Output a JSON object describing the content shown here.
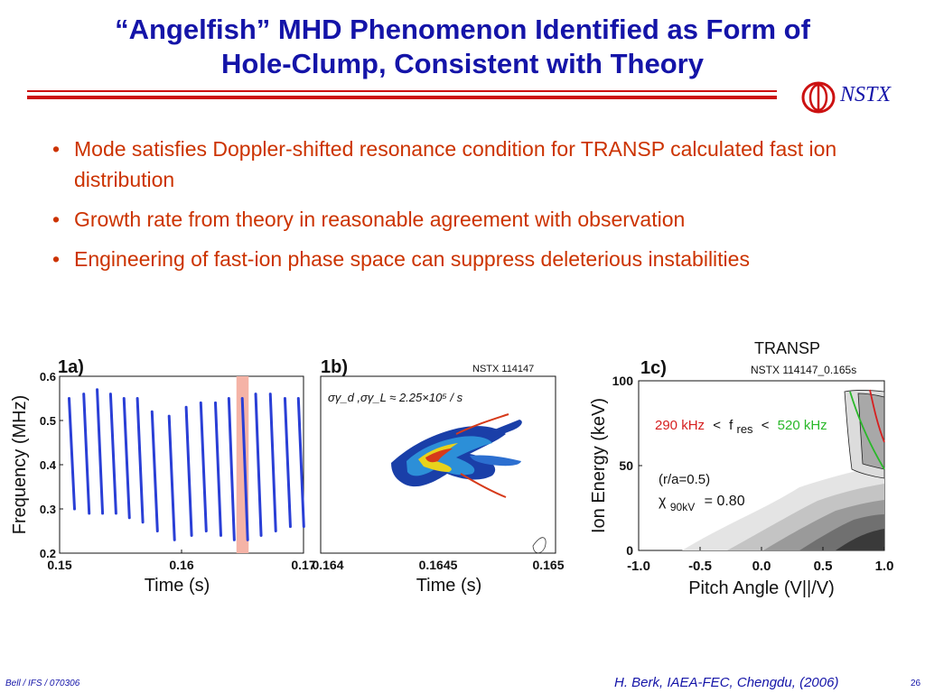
{
  "slide": {
    "title_line1": "“Angelfish” MHD Phenomenon Identified as Form of",
    "title_line2": "Hole-Clump, Consistent with Theory",
    "logo_text": "NSTX",
    "bullets": [
      "Mode satisfies Doppler-shifted resonance condition for TRANSP calculated fast ion distribution",
      "Growth rate from theory in reasonable agreement with observation",
      "Engineering of fast-ion phase space can suppress deleterious instabilities"
    ],
    "footer_left": "Bell / IFS / 070306",
    "footer_center": "H. Berk, IAEA-FEC, Chengdu, (2006)",
    "page_number": "26",
    "colors": {
      "title": "#1414a8",
      "bullets": "#cc3300",
      "rule": "#cc1111"
    }
  },
  "chart_data": [
    {
      "type": "scatter",
      "panel_label": "1a)",
      "xlabel": "Time (s)",
      "ylabel": "Frequency (MHz)",
      "xlim": [
        0.15,
        0.17
      ],
      "ylim": [
        0.2,
        0.6
      ],
      "xticks": [
        "0.15",
        "0.16",
        "0.17"
      ],
      "yticks": [
        "0.2",
        "0.3",
        "0.4",
        "0.5",
        "0.6"
      ],
      "highlight_band_x": [
        0.1645,
        0.1655
      ],
      "bursts": [
        {
          "t": 0.151,
          "f_low": 0.3,
          "f_high": 0.55
        },
        {
          "t": 0.1522,
          "f_low": 0.29,
          "f_high": 0.56
        },
        {
          "t": 0.1533,
          "f_low": 0.29,
          "f_high": 0.57
        },
        {
          "t": 0.1544,
          "f_low": 0.29,
          "f_high": 0.56
        },
        {
          "t": 0.1555,
          "f_low": 0.28,
          "f_high": 0.55
        },
        {
          "t": 0.1566,
          "f_low": 0.27,
          "f_high": 0.55
        },
        {
          "t": 0.1578,
          "f_low": 0.25,
          "f_high": 0.52
        },
        {
          "t": 0.1592,
          "f_low": 0.23,
          "f_high": 0.51
        },
        {
          "t": 0.1606,
          "f_low": 0.24,
          "f_high": 0.53
        },
        {
          "t": 0.1618,
          "f_low": 0.25,
          "f_high": 0.54
        },
        {
          "t": 0.163,
          "f_low": 0.24,
          "f_high": 0.54
        },
        {
          "t": 0.1641,
          "f_low": 0.23,
          "f_high": 0.55
        },
        {
          "t": 0.1652,
          "f_low": 0.23,
          "f_high": 0.55
        },
        {
          "t": 0.1663,
          "f_low": 0.24,
          "f_high": 0.56
        },
        {
          "t": 0.1675,
          "f_low": 0.25,
          "f_high": 0.56
        },
        {
          "t": 0.1687,
          "f_low": 0.26,
          "f_high": 0.55
        },
        {
          "t": 0.1698,
          "f_low": 0.26,
          "f_high": 0.55
        }
      ]
    },
    {
      "type": "contour",
      "panel_label": "1b)",
      "annotation_left": "σγ_d ,σγ_L ≈ 2.25×10⁵ / s",
      "annotation_right": "NSTX 114147",
      "xlabel": "Time (s)",
      "xlim": [
        0.164,
        0.165
      ],
      "xticks": [
        "0.164",
        "0.1645",
        "0.165"
      ]
    },
    {
      "type": "contour",
      "panel_label": "1c)",
      "header": "TRANSP",
      "annotation_right": "NSTX 114147_0.165s",
      "xlabel": "Pitch Angle (V||/V)",
      "ylabel": "Ion Energy (keV)",
      "xlim": [
        -1.0,
        1.0
      ],
      "ylim": [
        0,
        100
      ],
      "xticks": [
        "-1.0",
        "-0.5",
        "0.0",
        "0.5",
        "1.0"
      ],
      "yticks": [
        "0",
        "50",
        "100"
      ],
      "resonance_low": "290 kHz",
      "resonance_lt": "<",
      "resonance_mid": "f",
      "resonance_sub": "res",
      "resonance_gt": "<",
      "resonance_high": "520 kHz",
      "radius_note": "(r/a=0.5)",
      "chi_symbol": "χ",
      "chi_sub": "90kV",
      "chi_value": "= 0.80",
      "colors": {
        "low_line": "#d62020",
        "high_line": "#2ab82a",
        "contour_fill": "#666666"
      }
    }
  ]
}
